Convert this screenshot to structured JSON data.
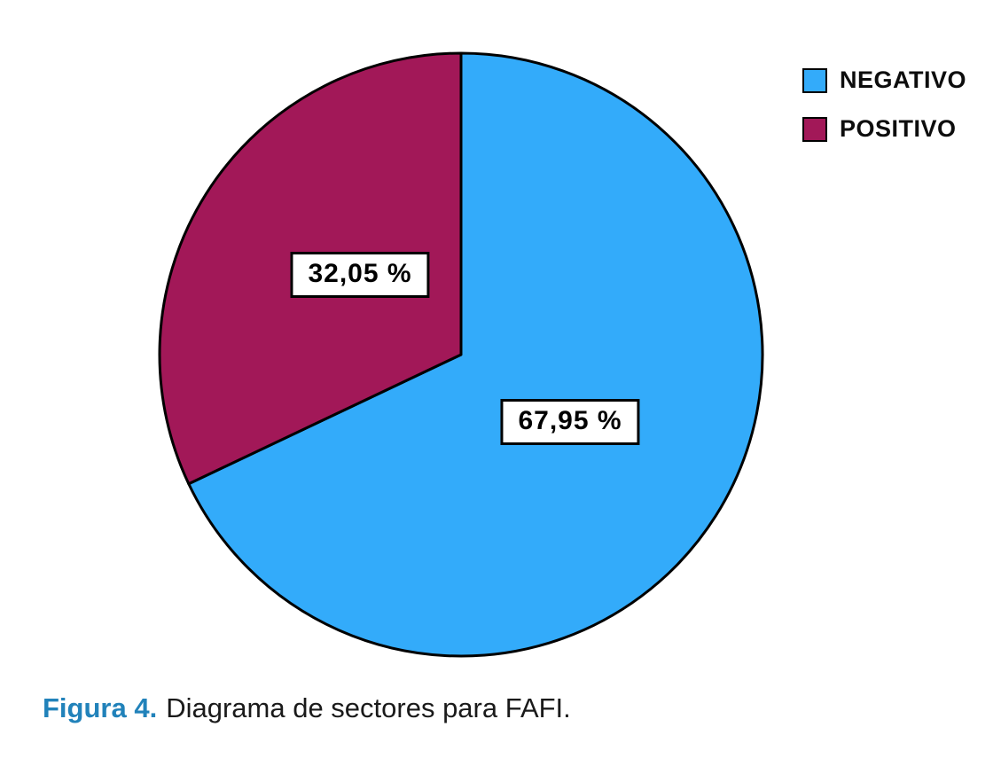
{
  "chart_data": {
    "type": "pie",
    "title": "",
    "slices": [
      {
        "label": "NEGATIVO",
        "value": 67.95,
        "display_value": "67,95 %",
        "color": "#33ABFA"
      },
      {
        "label": "POSITIVO",
        "value": 32.05,
        "display_value": "32,05 %",
        "color": "#A21858"
      }
    ],
    "start_angle_deg": -90,
    "direction": "clockwise",
    "slice_outline_color": "#000000",
    "legend_position": "top-right",
    "labels_in_white_boxes": true
  },
  "caption": {
    "prefix": "Figura 4.",
    "prefix_color": "#2182BA",
    "text": "Diagrama de sectores para FAFI."
  }
}
